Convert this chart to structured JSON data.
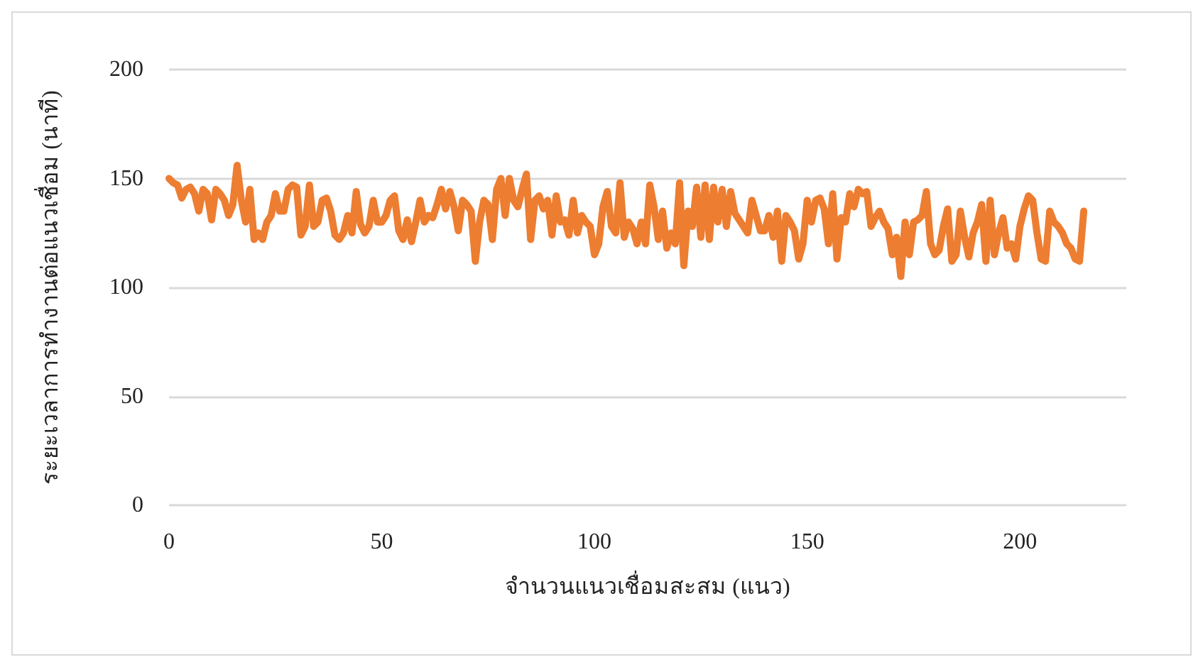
{
  "chart_data": {
    "type": "line",
    "xlabel": "จำนวนแนวเชื่อมสะสม (แนว)",
    "ylabel": "ระยะเวลาการทำงานต่อแนวเชื่อม (นาที)",
    "x": [
      0,
      1,
      2,
      3,
      4,
      5,
      6,
      7,
      8,
      9,
      10,
      11,
      12,
      13,
      14,
      15,
      16,
      17,
      18,
      19,
      20,
      21,
      22,
      23,
      24,
      25,
      26,
      27,
      28,
      29,
      30,
      31,
      32,
      33,
      34,
      35,
      36,
      37,
      38,
      39,
      40,
      41,
      42,
      43,
      44,
      45,
      46,
      47,
      48,
      49,
      50,
      51,
      52,
      53,
      54,
      55,
      56,
      57,
      58,
      59,
      60,
      61,
      62,
      63,
      64,
      65,
      66,
      67,
      68,
      69,
      70,
      71,
      72,
      73,
      74,
      75,
      76,
      77,
      78,
      79,
      80,
      81,
      82,
      83,
      84,
      85,
      86,
      87,
      88,
      89,
      90,
      91,
      92,
      93,
      94,
      95,
      96,
      97,
      98,
      99,
      100,
      101,
      102,
      103,
      104,
      105,
      106,
      107,
      108,
      109,
      110,
      111,
      112,
      113,
      114,
      115,
      116,
      117,
      118,
      119,
      120,
      121,
      122,
      123,
      124,
      125,
      126,
      127,
      128,
      129,
      130,
      131,
      132,
      133,
      134,
      135,
      136,
      137,
      138,
      139,
      140,
      141,
      142,
      143,
      144,
      145,
      146,
      147,
      148,
      149,
      150,
      151,
      152,
      153,
      154,
      155,
      156,
      157,
      158,
      159,
      160,
      161,
      162,
      163,
      164,
      165,
      166,
      167,
      168,
      169,
      170,
      171,
      172,
      173,
      174,
      175,
      176,
      177,
      178,
      179,
      180,
      181,
      182,
      183,
      184,
      185,
      186,
      187,
      188,
      189,
      190,
      191,
      192,
      193,
      194,
      195,
      196,
      197,
      198,
      199,
      200,
      201,
      202,
      203,
      204,
      205,
      206,
      207,
      208,
      209,
      210,
      211,
      212,
      213,
      214,
      215
    ],
    "series": [
      {
        "color": "#ed7d31",
        "values": [
          150,
          148,
          147,
          141,
          145,
          146,
          143,
          135,
          145,
          143,
          131,
          145,
          143,
          140,
          133,
          138,
          156,
          140,
          130,
          145,
          122,
          125,
          122,
          130,
          133,
          143,
          135,
          135,
          145,
          147,
          146,
          124,
          128,
          147,
          128,
          130,
          140,
          141,
          135,
          124,
          122,
          125,
          133,
          125,
          144,
          129,
          125,
          128,
          140,
          130,
          130,
          133,
          140,
          142,
          126,
          122,
          131,
          121,
          130,
          140,
          130,
          133,
          132,
          138,
          145,
          136,
          144,
          137,
          126,
          140,
          138,
          135,
          112,
          130,
          140,
          138,
          122,
          145,
          150,
          133,
          150,
          140,
          137,
          145,
          152,
          122,
          140,
          142,
          136,
          140,
          124,
          142,
          130,
          131,
          124,
          140,
          125,
          133,
          130,
          128,
          115,
          120,
          137,
          144,
          128,
          125,
          148,
          123,
          130,
          127,
          120,
          130,
          120,
          147,
          137,
          122,
          135,
          118,
          125,
          120,
          148,
          110,
          135,
          128,
          146,
          123,
          147,
          122,
          146,
          130,
          145,
          128,
          144,
          134,
          131,
          128,
          125,
          140,
          133,
          126,
          126,
          133,
          123,
          135,
          112,
          133,
          130,
          126,
          113,
          120,
          140,
          130,
          140,
          141,
          136,
          120,
          143,
          113,
          132,
          130,
          143,
          137,
          145,
          143,
          144,
          128,
          132,
          135,
          130,
          127,
          115,
          123,
          105,
          130,
          115,
          130,
          131,
          133,
          144,
          120,
          115,
          117,
          128,
          136,
          112,
          115,
          135,
          123,
          114,
          125,
          130,
          138,
          112,
          140,
          115,
          125,
          132,
          118,
          120,
          113,
          128,
          136,
          142,
          140,
          125,
          113,
          112,
          135,
          130,
          128,
          125,
          120,
          118,
          113,
          112,
          135
        ]
      }
    ],
    "xlim": [
      0,
      225
    ],
    "xticks": [
      0,
      50,
      100,
      150,
      200
    ],
    "ylim": [
      0,
      200
    ],
    "yticks": [
      0,
      50,
      100,
      150,
      200
    ],
    "grid": "y",
    "marker": "none",
    "line_style": "solid"
  }
}
